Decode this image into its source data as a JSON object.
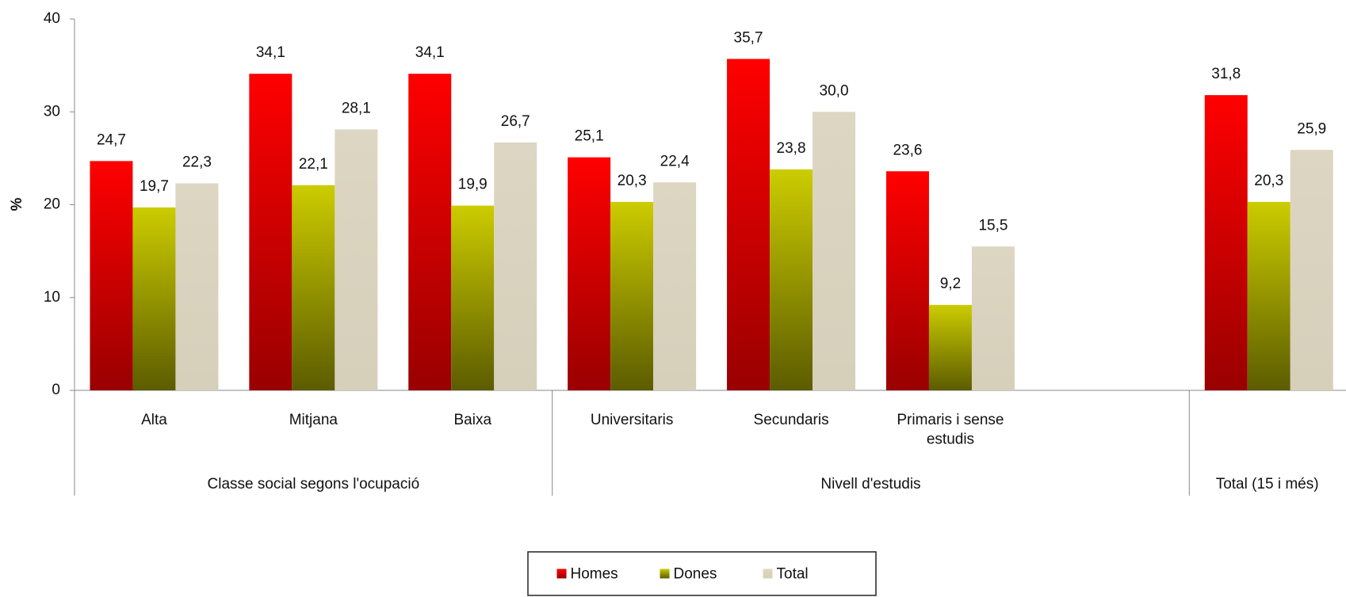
{
  "chart_data": {
    "type": "bar",
    "y_label": "%",
    "categories": [
      "Alta",
      "Mitjana",
      "Baixa",
      "Universitaris",
      "Secundaris",
      "Primaris i sense estudis",
      null,
      null
    ],
    "groups": [
      {
        "label": "Classe social segons l'ocupació",
        "span": 3
      },
      {
        "label": "Nivell d'estudis",
        "span": 4
      },
      {
        "label": "Total (15 i més)",
        "span": 1
      }
    ],
    "series": [
      {
        "name": "Homes",
        "color": "#ff0000",
        "color_bottom": "#990000",
        "values": [
          24.7,
          34.1,
          34.1,
          25.1,
          35.7,
          23.6,
          null,
          31.8
        ],
        "value_labels": [
          "24,7",
          "34,1",
          "34,1",
          "25,1",
          "35,7",
          "23,6",
          null,
          "31,8"
        ]
      },
      {
        "name": "Dones",
        "color": "#cccc00",
        "color_bottom": "#5c5c00",
        "values": [
          19.7,
          22.1,
          19.9,
          20.3,
          23.8,
          9.2,
          null,
          20.3
        ],
        "value_labels": [
          "19,7",
          "22,1",
          "19,9",
          "20,3",
          "23,8",
          "9,2",
          null,
          "20,3"
        ]
      },
      {
        "name": "Total",
        "color": "#ddd6c2",
        "color_bottom": "#d6cfba",
        "values": [
          22.3,
          28.1,
          26.7,
          22.4,
          30.0,
          15.5,
          null,
          25.9
        ],
        "value_labels": [
          "22,3",
          "28,1",
          "26,7",
          "22,4",
          "30,0",
          "15,5",
          null,
          "25,9"
        ]
      }
    ],
    "ylim": [
      0,
      40
    ],
    "yticks": [
      0,
      10,
      20,
      30,
      40
    ],
    "grid": false,
    "legend": "bottom"
  }
}
